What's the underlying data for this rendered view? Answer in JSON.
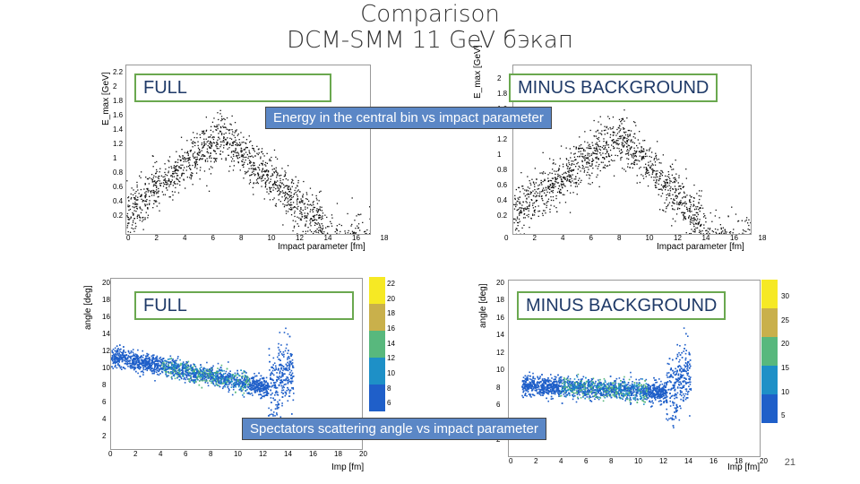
{
  "slide": {
    "title_line1": "Comparison",
    "title_line2": "DCM-SMM 11 GeV бэкап",
    "page_number": "21"
  },
  "top_row": {
    "label_left": "FULL",
    "label_right": "MINUS BACKGROUND",
    "caption": "Energy in the central bin vs impact parameter",
    "y_axis_label": "E_max [GeV]",
    "x_axis_label": "Impact parameter [fm]",
    "x_ticks": [
      "0",
      "2",
      "4",
      "6",
      "8",
      "10",
      "12",
      "14",
      "16",
      "18"
    ],
    "y_ticks_left": [
      "0.2",
      "0.4",
      "0.6",
      "0.8",
      "1",
      "1.2",
      "1.4",
      "1.6",
      "1.8",
      "2",
      "2.2"
    ],
    "y_ticks_right": [
      "0.2",
      "0.4",
      "0.6",
      "0.8",
      "1",
      "1.2",
      "1.4",
      "1.6",
      "1.8",
      "2"
    ]
  },
  "bottom_row": {
    "label_left": "FULL",
    "label_right": "MINUS BACKGROUND",
    "caption": "Spectators scattering angle vs impact parameter",
    "y_axis_label": "angle [deg]",
    "x_axis_label": "Imp [fm]",
    "x_ticks": [
      "0",
      "2",
      "4",
      "6",
      "8",
      "10",
      "12",
      "14",
      "16",
      "18",
      "20"
    ],
    "y_ticks": [
      "2",
      "4",
      "6",
      "8",
      "10",
      "12",
      "14",
      "16",
      "18",
      "20"
    ],
    "colorbar_left_ticks": [
      "22",
      "20",
      "18",
      "16",
      "14",
      "12",
      "10",
      "8",
      "6"
    ],
    "colorbar_right_ticks": [
      "30",
      "25",
      "20",
      "15",
      "10",
      "5"
    ]
  },
  "colors": {
    "box_border": "#6aa84f",
    "caption_bg": "#5b87c6",
    "palette": [
      "#1f5fc9",
      "#1e90c7",
      "#58b87d",
      "#c9b04b",
      "#f6e924"
    ]
  }
}
